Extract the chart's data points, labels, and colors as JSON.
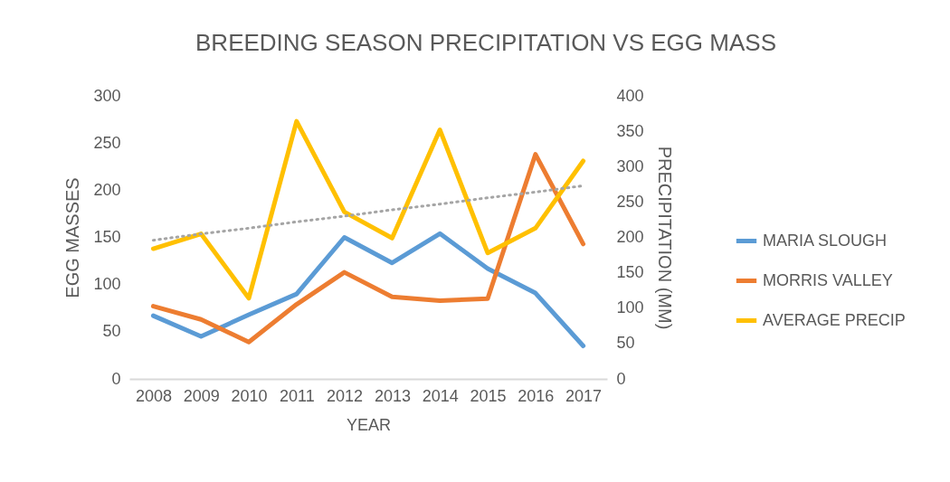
{
  "chart_data": {
    "type": "line",
    "title": "BREEDING SEASON PRECIPITATION VS EGG MASS",
    "xlabel": "YEAR",
    "ylabel": "EGG MASSES",
    "y2label": "PRECIPITATION (MM)",
    "categories": [
      "2008",
      "2009",
      "2010",
      "2011",
      "2012",
      "2013",
      "2014",
      "2015",
      "2016",
      "2017"
    ],
    "series": [
      {
        "name": "MARIA SLOUGH",
        "color": "#5b9bd5",
        "values": [
          67,
          45,
          68,
          90,
          150,
          123,
          154,
          117,
          91,
          35
        ]
      },
      {
        "name": "MORRIS VALLEY",
        "color": "#ed7d31",
        "values": [
          77,
          63,
          39,
          79,
          113,
          87,
          83,
          85,
          238,
          143
        ]
      },
      {
        "name": "AVERAGE PRECIP",
        "color": "#ffc000",
        "axis": "y2",
        "values": [
          184,
          205,
          114,
          364,
          236,
          199,
          352,
          178,
          213,
          308
        ]
      },
      {
        "type": "line",
        "color": "#a5a5a5",
        "axis": "y2",
        "line_style": "dotted",
        "values": [
          196,
          205,
          213,
          222,
          230,
          239,
          247,
          256,
          264,
          273
        ]
      }
    ],
    "ylim": [
      0,
      300
    ],
    "yticks": [
      0,
      50,
      100,
      150,
      200,
      250,
      300
    ],
    "y2lim": [
      0,
      400
    ],
    "y2ticks": [
      0,
      50,
      100,
      150,
      200,
      250,
      300,
      350,
      400
    ],
    "legend": "right",
    "grid": false,
    "marker": "none",
    "line_style": "solid"
  }
}
